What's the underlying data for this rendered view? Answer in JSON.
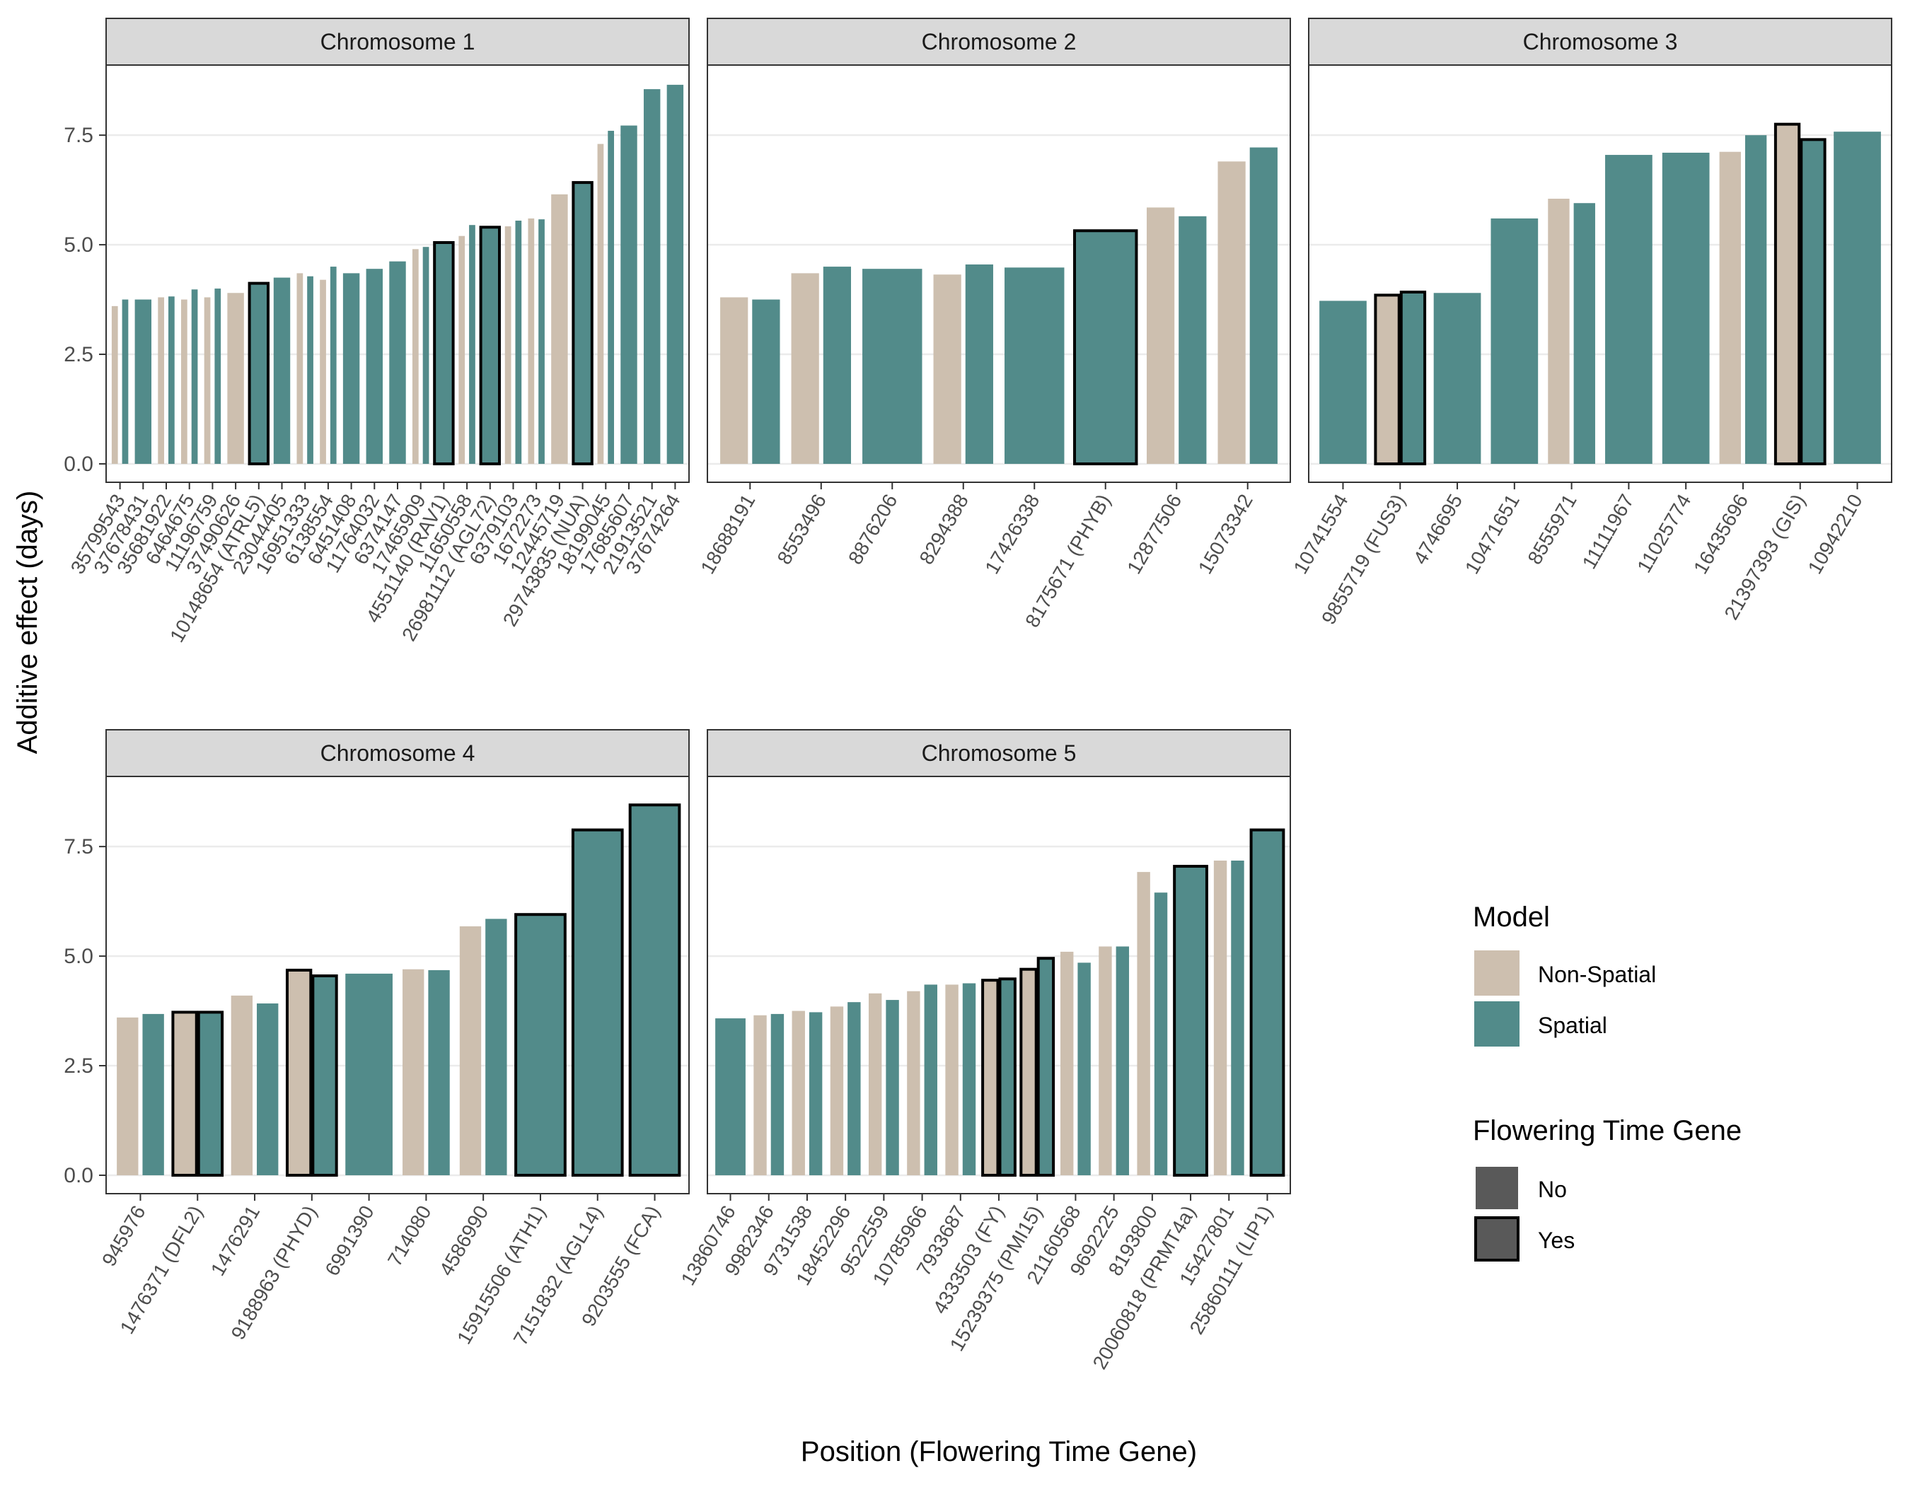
{
  "colors": {
    "non_spatial": "#cdbfaf",
    "spatial": "#528b8a",
    "strip_fill": "#d9d9d9",
    "grid": "#ebebeb",
    "panel_border": "#333333",
    "text": "#4d4d4d",
    "legend_key_fill": "#595959"
  },
  "chart_data": {
    "type": "bar",
    "title": "",
    "xlabel": "Position (Flowering Time Gene)",
    "ylabel": "Additive effect (days)",
    "ylim": [
      0,
      9.0
    ],
    "yticks": [
      0.0,
      2.5,
      5.0,
      7.5
    ],
    "ytick_labels": [
      "0.0",
      "2.5",
      "5.0",
      "7.5"
    ],
    "legend": {
      "model_title": "Model",
      "model_entries": [
        "Non-Spatial",
        "Spatial"
      ],
      "gene_title": "Flowering Time Gene",
      "gene_entries": [
        "No",
        "Yes"
      ]
    },
    "panels": [
      {
        "strip": "Chromosome 1",
        "categories": [
          {
            "label": "35799543",
            "ns": 3.6,
            "s": 3.75,
            "gene": false
          },
          {
            "label": "37678431",
            "ns": null,
            "s": 3.75,
            "gene": false
          },
          {
            "label": "35681922",
            "ns": 3.8,
            "s": 3.82,
            "gene": false
          },
          {
            "label": "6464675",
            "ns": 3.75,
            "s": 3.98,
            "gene": false
          },
          {
            "label": "11196759",
            "ns": 3.8,
            "s": 4.0,
            "gene": false
          },
          {
            "label": "37490626",
            "ns": 3.9,
            "s": null,
            "gene": false
          },
          {
            "label": "10148654 (ATRL5)",
            "ns": null,
            "s": 4.12,
            "gene": true
          },
          {
            "label": "23044405",
            "ns": null,
            "s": 4.25,
            "gene": false
          },
          {
            "label": "16951333",
            "ns": 4.35,
            "s": 4.28,
            "gene": false
          },
          {
            "label": "6138554",
            "ns": 4.2,
            "s": 4.5,
            "gene": false
          },
          {
            "label": "6451408",
            "ns": null,
            "s": 4.35,
            "gene": false
          },
          {
            "label": "11764032",
            "ns": null,
            "s": 4.45,
            "gene": false
          },
          {
            "label": "6374147",
            "ns": null,
            "s": 4.62,
            "gene": false
          },
          {
            "label": "17465909",
            "ns": 4.9,
            "s": 4.95,
            "gene": false
          },
          {
            "label": "4551140 (RAV1)",
            "ns": null,
            "s": 5.05,
            "gene": true
          },
          {
            "label": "11650558",
            "ns": 5.2,
            "s": 5.45,
            "gene": false
          },
          {
            "label": "26981112 (AGL72)",
            "ns": null,
            "s": 5.4,
            "gene": true
          },
          {
            "label": "6379103",
            "ns": 5.42,
            "s": 5.55,
            "gene": false
          },
          {
            "label": "1672273",
            "ns": 5.6,
            "s": 5.58,
            "gene": false
          },
          {
            "label": "12445719",
            "ns": 6.15,
            "s": null,
            "gene": false
          },
          {
            "label": "29743835 (NUA)",
            "ns": null,
            "s": 6.42,
            "gene": true
          },
          {
            "label": "18199045",
            "ns": 7.3,
            "s": 7.6,
            "gene": false
          },
          {
            "label": "17685607",
            "ns": null,
            "s": 7.72,
            "gene": false
          },
          {
            "label": "21913521",
            "ns": null,
            "s": 8.55,
            "gene": false
          },
          {
            "label": "37674264",
            "ns": null,
            "s": 8.65,
            "gene": false
          }
        ]
      },
      {
        "strip": "Chromosome 2",
        "categories": [
          {
            "label": "18688191",
            "ns": 3.8,
            "s": 3.75,
            "gene": false
          },
          {
            "label": "8553496",
            "ns": 4.35,
            "s": 4.5,
            "gene": false
          },
          {
            "label": "8876206",
            "ns": null,
            "s": 4.45,
            "gene": false
          },
          {
            "label": "8294388",
            "ns": 4.32,
            "s": 4.55,
            "gene": false
          },
          {
            "label": "17426338",
            "ns": null,
            "s": 4.48,
            "gene": false
          },
          {
            "label": "8175671 (PHYB)",
            "ns": null,
            "s": 5.32,
            "gene": true
          },
          {
            "label": "12877506",
            "ns": 5.85,
            "s": 5.65,
            "gene": false
          },
          {
            "label": "15073342",
            "ns": 6.9,
            "s": 7.22,
            "gene": false
          }
        ]
      },
      {
        "strip": "Chromosome 3",
        "categories": [
          {
            "label": "10741554",
            "ns": null,
            "s": 3.72,
            "gene": false
          },
          {
            "label": "9855719 (FUS3)",
            "ns": 3.85,
            "s": 3.92,
            "gene": true
          },
          {
            "label": "4746695",
            "ns": null,
            "s": 3.9,
            "gene": false
          },
          {
            "label": "10471651",
            "ns": null,
            "s": 5.6,
            "gene": false
          },
          {
            "label": "8555971",
            "ns": 6.05,
            "s": 5.95,
            "gene": false
          },
          {
            "label": "11111967",
            "ns": null,
            "s": 7.05,
            "gene": false
          },
          {
            "label": "11025774",
            "ns": null,
            "s": 7.1,
            "gene": false
          },
          {
            "label": "16435696",
            "ns": 7.12,
            "s": 7.5,
            "gene": false
          },
          {
            "label": "21397393 (GIS)",
            "ns": 7.75,
            "s": 7.4,
            "gene": true
          },
          {
            "label": "10942210",
            "ns": null,
            "s": 7.58,
            "gene": false
          }
        ]
      },
      {
        "strip": "Chromosome 4",
        "categories": [
          {
            "label": "945976",
            "ns": 3.6,
            "s": 3.68,
            "gene": false
          },
          {
            "label": "1476371 (DFL2)",
            "ns": 3.72,
            "s": 3.72,
            "gene": true
          },
          {
            "label": "1476291",
            "ns": 4.1,
            "s": 3.92,
            "gene": false
          },
          {
            "label": "9188963 (PHYD)",
            "ns": 4.68,
            "s": 4.55,
            "gene": true
          },
          {
            "label": "6991390",
            "ns": null,
            "s": 4.6,
            "gene": false
          },
          {
            "label": "714080",
            "ns": 4.7,
            "s": 4.68,
            "gene": false
          },
          {
            "label": "4586990",
            "ns": 5.68,
            "s": 5.85,
            "gene": false
          },
          {
            "label": "15915506 (ATH1)",
            "ns": null,
            "s": 5.95,
            "gene": true
          },
          {
            "label": "7151832 (AGL14)",
            "ns": null,
            "s": 7.88,
            "gene": true
          },
          {
            "label": "9203555 (FCA)",
            "ns": null,
            "s": 8.45,
            "gene": true
          }
        ]
      },
      {
        "strip": "Chromosome 5",
        "categories": [
          {
            "label": "13860746",
            "ns": null,
            "s": 3.58,
            "gene": false
          },
          {
            "label": "9982346",
            "ns": 3.65,
            "s": 3.68,
            "gene": false
          },
          {
            "label": "9731538",
            "ns": 3.75,
            "s": 3.72,
            "gene": false
          },
          {
            "label": "18452296",
            "ns": 3.85,
            "s": 3.95,
            "gene": false
          },
          {
            "label": "9522559",
            "ns": 4.15,
            "s": 4.0,
            "gene": false
          },
          {
            "label": "10785966",
            "ns": 4.2,
            "s": 4.35,
            "gene": false
          },
          {
            "label": "7933687",
            "ns": 4.35,
            "s": 4.38,
            "gene": false
          },
          {
            "label": "4333503 (FY)",
            "ns": 4.45,
            "s": 4.48,
            "gene": true
          },
          {
            "label": "15239375 (PMI15)",
            "ns": 4.7,
            "s": 4.95,
            "gene": true
          },
          {
            "label": "21160568",
            "ns": 5.1,
            "s": 4.85,
            "gene": false
          },
          {
            "label": "9692225",
            "ns": 5.22,
            "s": 5.22,
            "gene": false
          },
          {
            "label": "8193800",
            "ns": 6.92,
            "s": 6.45,
            "gene": false
          },
          {
            "label": "20060818 (PRMT4a)",
            "ns": null,
            "s": 7.05,
            "gene": true
          },
          {
            "label": "15427801",
            "ns": 7.18,
            "s": 7.18,
            "gene": false
          },
          {
            "label": "25860111 (LIP1)",
            "ns": null,
            "s": 7.88,
            "gene": true
          }
        ]
      }
    ]
  }
}
